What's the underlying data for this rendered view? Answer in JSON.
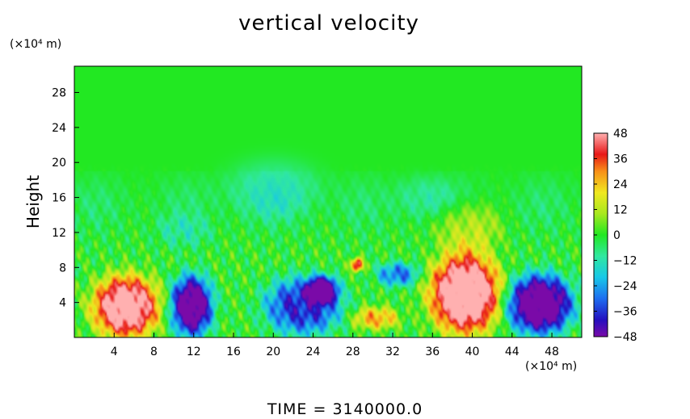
{
  "chart_data": {
    "type": "heatmap",
    "title": "vertical velocity",
    "ylabel": "Height",
    "x_unit": "(×10⁴ m)",
    "y_unit": "(×10⁴ m)",
    "x_ticks": [
      4,
      8,
      12,
      16,
      20,
      24,
      28,
      32,
      36,
      40,
      44,
      48
    ],
    "y_ticks": [
      4,
      8,
      12,
      16,
      20,
      24,
      28
    ],
    "xlim": [
      0,
      51
    ],
    "ylim": [
      0,
      31
    ],
    "colorbar": {
      "ticks": [
        48,
        36,
        24,
        12,
        0,
        -12,
        -24,
        -36,
        -48
      ],
      "range": [
        -48,
        48
      ],
      "stops": [
        {
          "v": -48,
          "c": "#7a0aa8"
        },
        {
          "v": -40,
          "c": "#2410c0"
        },
        {
          "v": -30,
          "c": "#1e6ef0"
        },
        {
          "v": -20,
          "c": "#18c8e8"
        },
        {
          "v": -10,
          "c": "#30e8a0"
        },
        {
          "v": 0,
          "c": "#22e822"
        },
        {
          "v": 10,
          "c": "#a8e820"
        },
        {
          "v": 20,
          "c": "#f0e820"
        },
        {
          "v": 30,
          "c": "#f89018"
        },
        {
          "v": 38,
          "c": "#e81818"
        },
        {
          "v": 48,
          "c": "#ffb0b0"
        }
      ]
    },
    "features": [
      {
        "x": 5.2,
        "y": 3.5,
        "rx": 3.4,
        "ry": 3.6,
        "amp": 55
      },
      {
        "x": 11.8,
        "y": 3.6,
        "rx": 2.2,
        "ry": 3.6,
        "amp": -55
      },
      {
        "x": 23,
        "y": 3.6,
        "rx": 4.0,
        "ry": 3.4,
        "amp": -38
      },
      {
        "x": 25,
        "y": 5.5,
        "rx": 1.6,
        "ry": 1.6,
        "amp": -40
      },
      {
        "x": 30.3,
        "y": 2.2,
        "rx": 2.4,
        "ry": 1.3,
        "amp": 26
      },
      {
        "x": 28.4,
        "y": 8.3,
        "rx": 0.7,
        "ry": 0.8,
        "amp": 40
      },
      {
        "x": 32.5,
        "y": 7.2,
        "rx": 2.2,
        "ry": 1.4,
        "amp": -28
      },
      {
        "x": 39.3,
        "y": 5.0,
        "rx": 3.6,
        "ry": 4.6,
        "amp": 60
      },
      {
        "x": 46.8,
        "y": 3.8,
        "rx": 3.4,
        "ry": 3.5,
        "amp": -58
      },
      {
        "x": 39.5,
        "y": 12.5,
        "rx": 3.5,
        "ry": 3.0,
        "amp": 14
      },
      {
        "x": 20,
        "y": 17,
        "rx": 5.0,
        "ry": 3.5,
        "amp": -9
      },
      {
        "x": 11,
        "y": 12,
        "rx": 3.0,
        "ry": 2.0,
        "amp": -8
      },
      {
        "x": 35,
        "y": 16,
        "rx": 3.0,
        "ry": 2.5,
        "amp": -7
      }
    ]
  },
  "footer": {
    "label": "TIME",
    "eq": "=",
    "value": "3140000.0"
  }
}
